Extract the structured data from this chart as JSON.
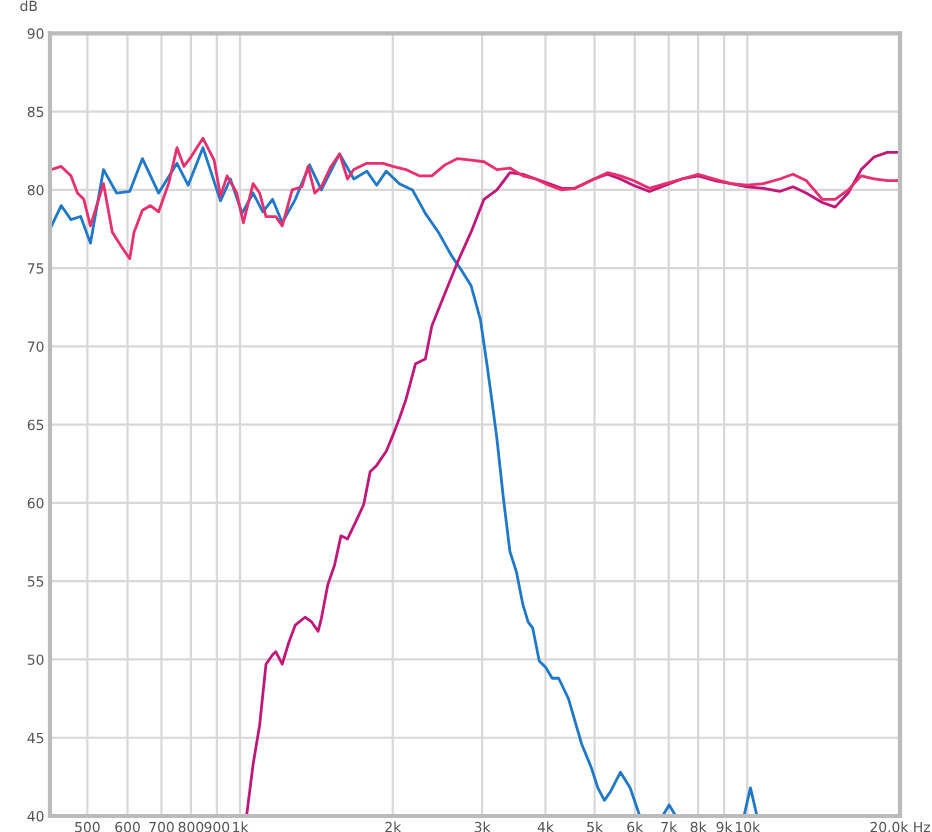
{
  "chart_data": {
    "type": "line",
    "ylabel": "dB",
    "xlim": [
      422,
      20000
    ],
    "ylim": [
      40,
      90
    ],
    "xticks": [
      500,
      600,
      700,
      800,
      900,
      {
        "value": 1000,
        "label": "1k"
      },
      {
        "value": 2000,
        "label": "2k"
      },
      {
        "value": 3000,
        "label": "3k"
      },
      {
        "value": 4000,
        "label": "4k"
      },
      {
        "value": 5000,
        "label": "5k"
      },
      {
        "value": 6000,
        "label": "6k"
      },
      {
        "value": 7000,
        "label": "7k"
      },
      {
        "value": 8000,
        "label": "8k"
      },
      {
        "value": 9000,
        "label": "9k"
      },
      {
        "value": 10000,
        "label": "10k"
      },
      {
        "value": 20000,
        "label": "20.0k Hz"
      }
    ],
    "yticks": [
      40,
      45,
      50,
      55,
      60,
      65,
      70,
      75,
      80,
      85,
      90
    ],
    "log": "x",
    "grid": true,
    "legend": false,
    "marker": "none",
    "line_style": "solid",
    "series": [
      {
        "color": "#1f78c8",
        "x": [
          425,
          444,
          464,
          485,
          507,
          538,
          571,
          606,
          642,
          691,
          751,
          790,
          845,
          915,
          957,
          1009,
          1061,
          1109,
          1159,
          1211,
          1285,
          1371,
          1446,
          1571,
          1676,
          1778,
          1859,
          1942,
          2061,
          2187,
          2319,
          2460,
          2611,
          2728,
          2853,
          2978,
          3069,
          3135,
          3209,
          3305,
          3404,
          3506,
          3611,
          3697,
          3776,
          3889,
          4003,
          4124,
          4247,
          4440,
          4714,
          4925,
          5074,
          5228,
          5383,
          5623,
          5874,
          6138,
          6500,
          6808,
          7014,
          7227,
          8500,
          9851,
          10143,
          10449
        ],
        "values": [
          77.7,
          79.0,
          78.1,
          78.3,
          76.6,
          81.3,
          79.8,
          79.9,
          82.0,
          79.8,
          81.7,
          80.3,
          82.7,
          79.3,
          80.7,
          78.5,
          79.8,
          78.6,
          79.4,
          77.9,
          79.4,
          81.6,
          80.0,
          82.3,
          80.7,
          81.2,
          80.3,
          81.2,
          80.4,
          80.0,
          78.5,
          77.3,
          75.8,
          74.9,
          73.9,
          71.7,
          68.8,
          66.6,
          64.1,
          60.3,
          56.9,
          55.6,
          53.5,
          52.4,
          52.0,
          49.9,
          49.5,
          48.8,
          48.8,
          47.5,
          44.6,
          43.1,
          41.8,
          41.0,
          41.6,
          42.8,
          41.8,
          40.0,
          null,
          40.0,
          40.7,
          40.0,
          null,
          40.0,
          41.8,
          40.0
        ]
      },
      {
        "color": "#c01878",
        "x": [
          1030,
          1061,
          1093,
          1125,
          1159,
          1176,
          1211,
          1248,
          1285,
          1343,
          1384,
          1425,
          1446,
          1490,
          1535,
          1581,
          1629,
          1702,
          1753,
          1805,
          1859,
          1942,
          2000,
          2061,
          2123,
          2218,
          2319,
          2388,
          2535,
          2685,
          2853,
          3026,
          3209,
          3404,
          3611,
          3828,
          4062,
          4305,
          4571,
          4990,
          5297,
          5623,
          5959,
          6412,
          6902,
          7430,
          8000,
          8610,
          9290,
          10000,
          10760,
          11590,
          12300,
          13060,
          14060,
          14900,
          15810,
          16770,
          17780,
          18880,
          19900
        ],
        "values": [
          40.0,
          43.3,
          45.8,
          49.7,
          50.3,
          50.5,
          49.7,
          51.1,
          52.2,
          52.7,
          52.4,
          51.8,
          52.6,
          54.8,
          56.0,
          57.9,
          57.7,
          59.0,
          59.9,
          62.0,
          62.4,
          63.3,
          64.3,
          65.4,
          66.6,
          68.9,
          69.2,
          71.3,
          73.4,
          75.4,
          77.3,
          79.4,
          80.0,
          81.1,
          81.0,
          80.7,
          80.4,
          80.1,
          80.1,
          80.7,
          81.0,
          80.7,
          80.3,
          79.9,
          80.3,
          80.7,
          80.9,
          80.6,
          80.4,
          80.2,
          80.1,
          79.9,
          80.2,
          79.8,
          79.2,
          78.9,
          79.8,
          81.3,
          82.1,
          82.4,
          82.4
        ]
      },
      {
        "color": "#e8306c",
        "x": [
          425,
          444,
          464,
          478,
          492,
          507,
          538,
          560,
          583,
          606,
          618,
          642,
          666,
          691,
          723,
          751,
          775,
          800,
          845,
          889,
          915,
          943,
          985,
          1015,
          1061,
          1093,
          1125,
          1176,
          1211,
          1267,
          1324,
          1362,
          1404,
          1446,
          1511,
          1571,
          1629,
          1676,
          1778,
          1914,
          2000,
          2123,
          2254,
          2388,
          2535,
          2685,
          2853,
          3026,
          3209,
          3404,
          3611,
          3828,
          4062,
          4305,
          4571,
          4990,
          5297,
          5623,
          5959,
          6412,
          6902,
          7430,
          8000,
          8610,
          9290,
          10000,
          10760,
          11590,
          12300,
          13060,
          14060,
          14900,
          15810,
          16770,
          17780,
          18880,
          19900
        ],
        "values": [
          81.3,
          81.5,
          80.9,
          79.8,
          79.4,
          77.7,
          80.4,
          77.3,
          76.4,
          75.6,
          77.3,
          78.7,
          79.0,
          78.6,
          80.4,
          82.7,
          81.5,
          82.1,
          83.3,
          81.9,
          79.6,
          80.9,
          79.8,
          77.9,
          80.4,
          79.8,
          78.3,
          78.3,
          77.7,
          80.0,
          80.2,
          81.5,
          79.8,
          80.2,
          81.5,
          82.3,
          80.7,
          81.3,
          81.7,
          81.7,
          81.5,
          81.3,
          80.9,
          80.9,
          81.6,
          82.0,
          81.9,
          81.8,
          81.3,
          81.4,
          80.9,
          80.7,
          80.3,
          80.0,
          80.1,
          80.7,
          81.1,
          80.9,
          80.6,
          80.1,
          80.4,
          80.7,
          81.0,
          80.7,
          80.4,
          80.3,
          80.4,
          80.7,
          81.0,
          80.6,
          79.4,
          79.4,
          80.0,
          80.9,
          80.7,
          80.6,
          80.6
        ]
      }
    ]
  }
}
